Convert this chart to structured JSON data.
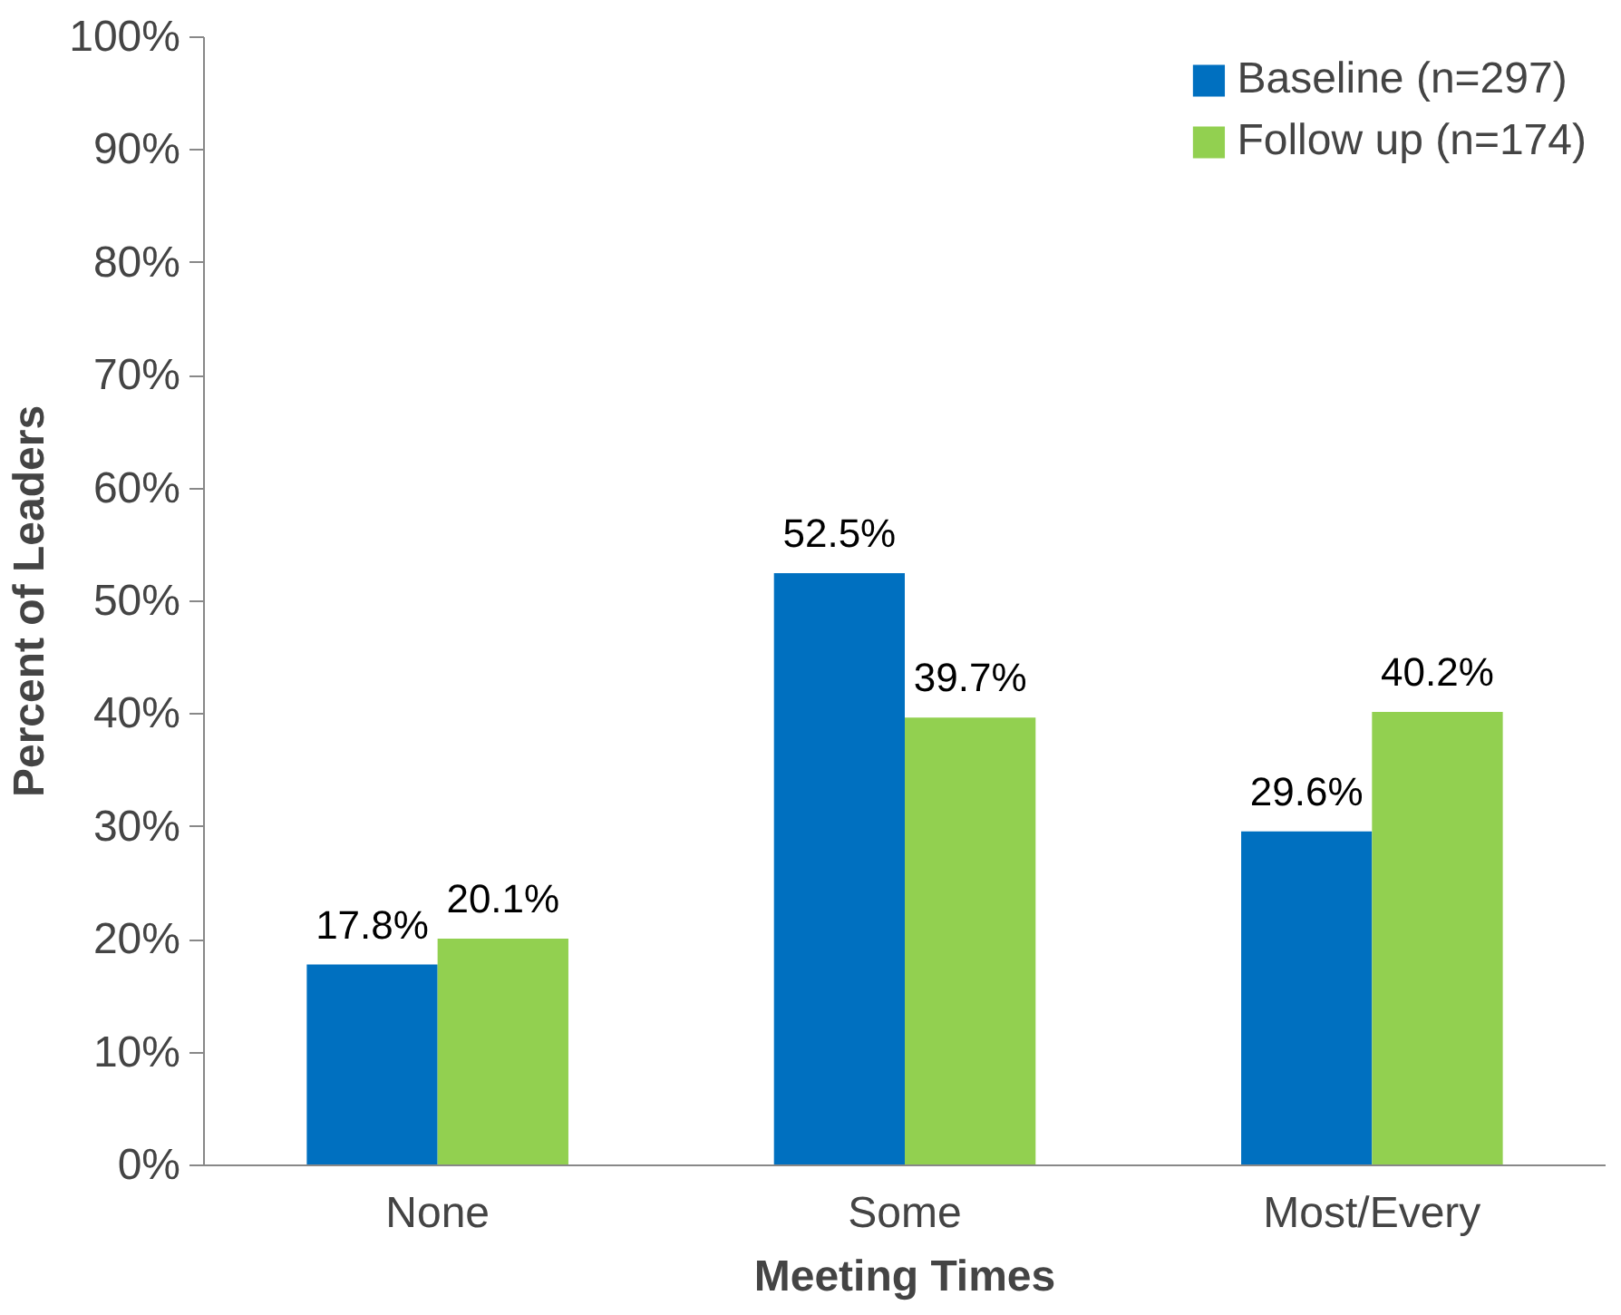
{
  "chart_data": {
    "type": "bar",
    "xlabel": "Meeting Times",
    "ylabel": "Percent of Leaders",
    "categories": [
      "None",
      "Some",
      "Most/Every"
    ],
    "series": [
      {
        "name": "Baseline (n=297)",
        "color": "#0070c0",
        "values": [
          17.8,
          52.5,
          29.6
        ],
        "value_labels": [
          "17.8%",
          "52.5%",
          "29.6%"
        ]
      },
      {
        "name": "Follow up (n=174)",
        "color": "#92d050",
        "values": [
          20.1,
          39.7,
          40.2
        ],
        "value_labels": [
          "20.1%",
          "39.7%",
          "40.2%"
        ]
      }
    ],
    "ylim": [
      0,
      100
    ],
    "yticks": [
      {
        "value": 0,
        "label": "0%"
      },
      {
        "value": 10,
        "label": "10%"
      },
      {
        "value": 20,
        "label": "20%"
      },
      {
        "value": 30,
        "label": "30%"
      },
      {
        "value": 40,
        "label": "40%"
      },
      {
        "value": 50,
        "label": "50%"
      },
      {
        "value": 60,
        "label": "60%"
      },
      {
        "value": 70,
        "label": "70%"
      },
      {
        "value": 80,
        "label": "80%"
      },
      {
        "value": 90,
        "label": "90%"
      },
      {
        "value": 100,
        "label": "100%"
      }
    ],
    "grid": false,
    "legend": "top right"
  }
}
